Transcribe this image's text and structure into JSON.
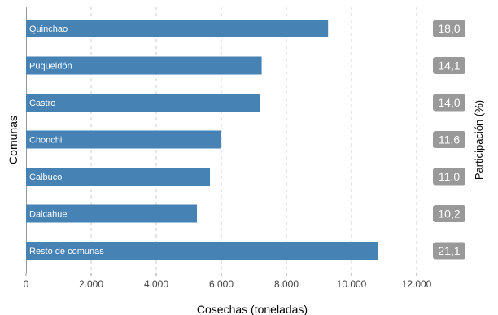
{
  "chart_data": {
    "type": "bar",
    "orientation": "horizontal",
    "categories": [
      "Quinchao",
      "Puqueldón",
      "Castro",
      "Chonchi",
      "Calbuco",
      "Dalcahue",
      "Resto de comunas"
    ],
    "values": [
      9280,
      7240,
      7180,
      5980,
      5650,
      5250,
      10820
    ],
    "share_labels": [
      "18,0",
      "14,1",
      "14,0",
      "11,6",
      "11,0",
      "10,2",
      "21,1"
    ],
    "xlabel": "Cosechas (toneladas)",
    "ylabel": "Comunas",
    "secondary_ylabel": "Participación (%)",
    "xlim": [
      0,
      14500
    ],
    "xticks": [
      0,
      2000,
      4000,
      6000,
      8000,
      10000,
      12000
    ],
    "xtick_labels": [
      "0",
      "2.000",
      "4.000",
      "6.000",
      "8.000",
      "10.000",
      "12.000"
    ],
    "grid": "vertical dashed",
    "colors": {
      "bar": "#4682b4",
      "share_badge": "#999999",
      "grid": "#cccccc"
    }
  }
}
